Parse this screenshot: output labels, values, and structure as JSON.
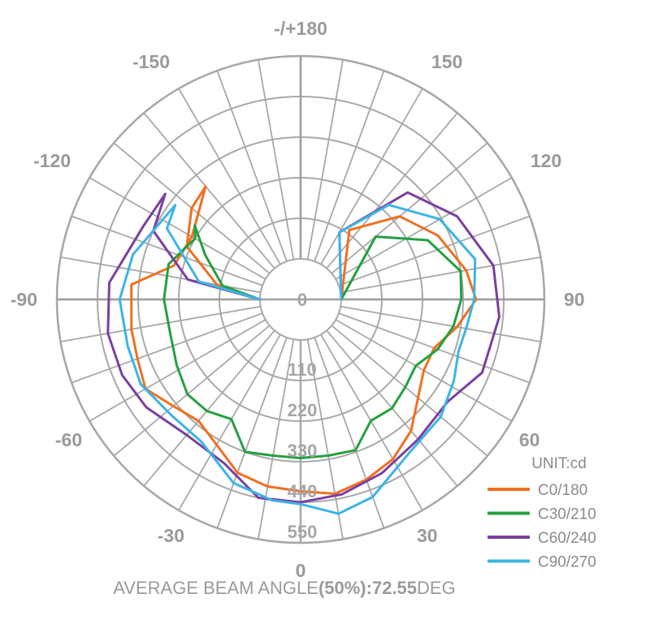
{
  "chart_data": {
    "type": "polar-line",
    "angle_labels": [
      {
        "text": "-/+180",
        "deg": 180
      },
      {
        "text": "150",
        "deg": 150
      },
      {
        "text": "120",
        "deg": 120
      },
      {
        "text": "90",
        "deg": 90
      },
      {
        "text": "60",
        "deg": 60
      },
      {
        "text": "30",
        "deg": 30
      },
      {
        "text": "0",
        "deg": 0
      },
      {
        "text": "-30",
        "deg": -30
      },
      {
        "text": "-60",
        "deg": -60
      },
      {
        "text": "-90",
        "deg": -90
      },
      {
        "text": "-120",
        "deg": -120
      },
      {
        "text": "-150",
        "deg": -150
      }
    ],
    "radial_ticks": [
      "0",
      "110",
      "220",
      "330",
      "440",
      "550"
    ],
    "radial_values": [
      0,
      110,
      220,
      330,
      440,
      550
    ],
    "r_range": [
      -110,
      550
    ],
    "angular_grid_step_deg": 10,
    "grid": true,
    "unit_label": "UNIT:cd",
    "legend_position": "bottom-right",
    "series": [
      {
        "name": "C0/180",
        "color": "#f07020",
        "points": [
          [
            -90,
            0
          ],
          [
            -100,
            120
          ],
          [
            -115,
            230
          ],
          [
            -130,
            275
          ],
          [
            -140,
            290
          ],
          [
            -120,
            230
          ],
          [
            -105,
            245
          ],
          [
            -95,
            350
          ],
          [
            -80,
            355
          ],
          [
            -70,
            360
          ],
          [
            -60,
            375
          ],
          [
            -50,
            340
          ],
          [
            -40,
            320
          ],
          [
            -30,
            345
          ],
          [
            -20,
            390
          ],
          [
            -10,
            405
          ],
          [
            0,
            410
          ],
          [
            10,
            425
          ],
          [
            20,
            410
          ],
          [
            30,
            390
          ],
          [
            40,
            355
          ],
          [
            50,
            305
          ],
          [
            60,
            275
          ],
          [
            70,
            275
          ],
          [
            80,
            320
          ],
          [
            90,
            365
          ],
          [
            100,
            345
          ],
          [
            115,
            300
          ],
          [
            130,
            240
          ],
          [
            145,
            120
          ],
          [
            90,
            0
          ]
        ]
      },
      {
        "name": "C30/210",
        "color": "#25a040",
        "points": [
          [
            -90,
            0
          ],
          [
            -100,
            105
          ],
          [
            -115,
            175
          ],
          [
            -125,
            240
          ],
          [
            -120,
            220
          ],
          [
            -105,
            260
          ],
          [
            -90,
            260
          ],
          [
            -75,
            255
          ],
          [
            -62,
            270
          ],
          [
            -50,
            290
          ],
          [
            -40,
            285
          ],
          [
            -30,
            265
          ],
          [
            -20,
            330
          ],
          [
            -10,
            320
          ],
          [
            0,
            320
          ],
          [
            10,
            320
          ],
          [
            20,
            325
          ],
          [
            30,
            270
          ],
          [
            40,
            275
          ],
          [
            50,
            260
          ],
          [
            60,
            250
          ],
          [
            70,
            285
          ],
          [
            80,
            310
          ],
          [
            90,
            325
          ],
          [
            100,
            330
          ],
          [
            115,
            270
          ],
          [
            130,
            155
          ],
          [
            90,
            0
          ]
        ]
      },
      {
        "name": "C60/240",
        "color": "#7a40a0",
        "points": [
          [
            -90,
            0
          ],
          [
            -100,
            200
          ],
          [
            -115,
            330
          ],
          [
            -128,
            355
          ],
          [
            -115,
            360
          ],
          [
            -95,
            410
          ],
          [
            -80,
            420
          ],
          [
            -67,
            415
          ],
          [
            -55,
            400
          ],
          [
            -40,
            370
          ],
          [
            -25,
            380
          ],
          [
            -12,
            440
          ],
          [
            0,
            440
          ],
          [
            12,
            430
          ],
          [
            25,
            410
          ],
          [
            40,
            385
          ],
          [
            55,
            375
          ],
          [
            68,
            420
          ],
          [
            85,
            430
          ],
          [
            100,
            420
          ],
          [
            118,
            370
          ],
          [
            135,
            300
          ],
          [
            150,
            100
          ],
          [
            90,
            0
          ]
        ]
      },
      {
        "name": "C90/270",
        "color": "#3cb4e6",
        "points": [
          [
            -90,
            0
          ],
          [
            -100,
            170
          ],
          [
            -118,
            300
          ],
          [
            -127,
            315
          ],
          [
            -105,
            360
          ],
          [
            -90,
            380
          ],
          [
            -75,
            375
          ],
          [
            -62,
            380
          ],
          [
            -48,
            360
          ],
          [
            -35,
            360
          ],
          [
            -20,
            420
          ],
          [
            -8,
            440
          ],
          [
            0,
            445
          ],
          [
            10,
            480
          ],
          [
            20,
            460
          ],
          [
            35,
            400
          ],
          [
            50,
            385
          ],
          [
            62,
            360
          ],
          [
            72,
            340
          ],
          [
            80,
            345
          ],
          [
            90,
            360
          ],
          [
            103,
            375
          ],
          [
            120,
            325
          ],
          [
            137,
            240
          ],
          [
            150,
            100
          ],
          [
            90,
            0
          ]
        ]
      }
    ]
  },
  "footer": {
    "prefix": "AVERAGE BEAM ANGLE",
    "bold": "(50%):72.55",
    "suffix": "DEG"
  }
}
